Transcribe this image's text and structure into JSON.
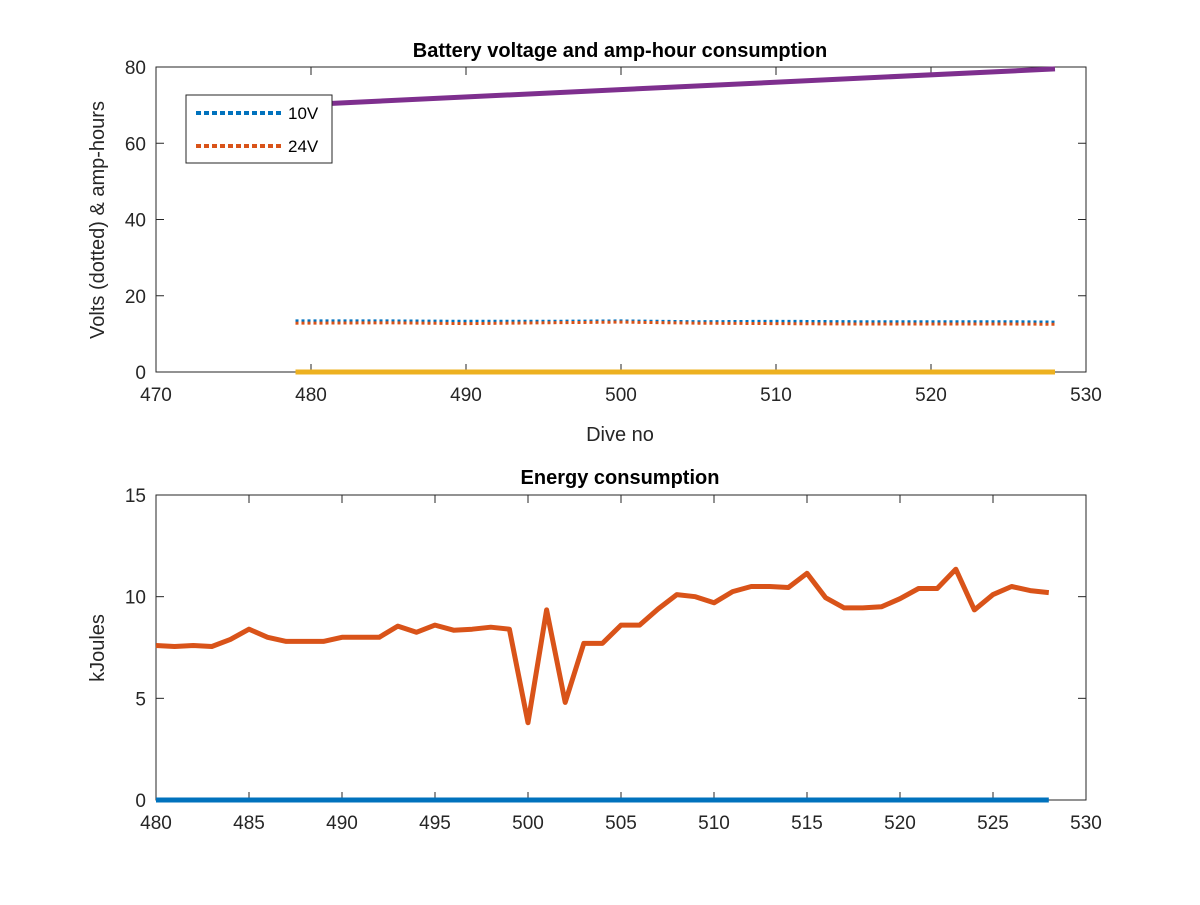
{
  "chart_data": [
    {
      "type": "line",
      "title": "Battery voltage and amp-hour consumption",
      "xlabel": "Dive no",
      "ylabel": "Volts (dotted) & amp-hours",
      "xlim": [
        470,
        530
      ],
      "ylim": [
        0,
        80
      ],
      "xticks": [
        "470",
        "480",
        "490",
        "500",
        "510",
        "520",
        "530"
      ],
      "yticks": [
        "0",
        "20",
        "40",
        "60",
        "80"
      ],
      "grid": false,
      "legend_position": "top-left",
      "series": [
        {
          "name": "10V",
          "style": "dotted",
          "color": "#0072BD",
          "x": [
            479,
            485,
            490,
            495,
            500,
            505,
            510,
            515,
            520,
            525,
            528
          ],
          "y": [
            13.4,
            13.4,
            13.3,
            13.3,
            13.4,
            13.2,
            13.3,
            13.2,
            13.2,
            13.2,
            13.1
          ]
        },
        {
          "name": "24V",
          "style": "dotted",
          "color": "#D95319",
          "x": [
            479,
            485,
            490,
            495,
            500,
            505,
            510,
            515,
            520,
            525,
            528
          ],
          "y": [
            12.8,
            12.9,
            12.7,
            12.9,
            13.1,
            12.8,
            12.7,
            12.6,
            12.6,
            12.6,
            12.5
          ]
        },
        {
          "style": "solid",
          "color": "#EDB120",
          "x": [
            479,
            528
          ],
          "y": [
            0,
            0
          ]
        },
        {
          "style": "solid",
          "color": "#7E2F8E",
          "x": [
            479,
            528
          ],
          "y": [
            70,
            79.5
          ]
        }
      ]
    },
    {
      "type": "line",
      "title": "Energy consumption",
      "xlabel": "",
      "ylabel": "kJoules",
      "xlim": [
        480,
        530
      ],
      "ylim": [
        0,
        15
      ],
      "xticks": [
        "480",
        "485",
        "490",
        "495",
        "500",
        "505",
        "510",
        "515",
        "520",
        "525",
        "530"
      ],
      "yticks": [
        "0",
        "5",
        "10",
        "15"
      ],
      "grid": false,
      "series": [
        {
          "style": "solid",
          "color": "#0072BD",
          "x": [
            480,
            528
          ],
          "y": [
            0,
            0
          ]
        },
        {
          "style": "solid",
          "color": "#D95319",
          "x": [
            480,
            481,
            482,
            483,
            484,
            485,
            486,
            487,
            488,
            489,
            490,
            491,
            492,
            493,
            494,
            495,
            496,
            497,
            498,
            499,
            500,
            501,
            502,
            503,
            504,
            505,
            506,
            507,
            508,
            509,
            510,
            511,
            512,
            513,
            514,
            515,
            516,
            517,
            518,
            519,
            520,
            521,
            522,
            523,
            524,
            525,
            526,
            527,
            528
          ],
          "y": [
            7.6,
            7.55,
            7.6,
            7.55,
            7.9,
            8.4,
            8.0,
            7.8,
            7.8,
            7.8,
            8.0,
            8.0,
            8.0,
            8.55,
            8.25,
            8.6,
            8.35,
            8.4,
            8.5,
            8.4,
            3.8,
            9.35,
            4.8,
            7.7,
            7.7,
            8.6,
            8.6,
            9.4,
            10.1,
            10.0,
            9.7,
            10.25,
            10.5,
            10.5,
            10.45,
            11.15,
            9.95,
            9.45,
            9.45,
            9.5,
            9.9,
            10.4,
            10.4,
            11.35,
            9.35,
            10.1,
            10.5,
            10.3,
            10.2
          ]
        }
      ]
    }
  ]
}
